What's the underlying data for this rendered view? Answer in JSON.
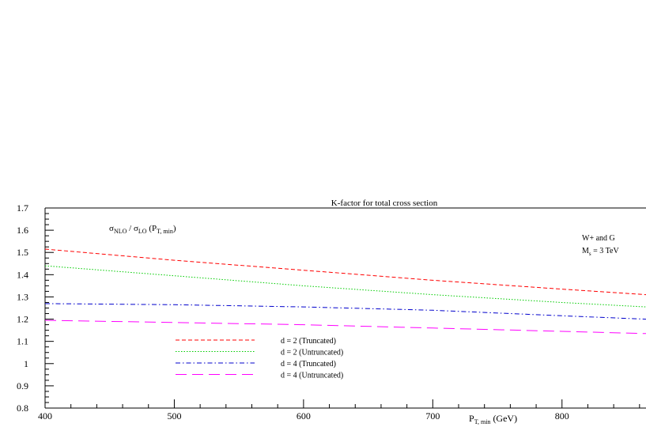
{
  "chart_data": {
    "type": "line",
    "title": "K-factor for total cross section",
    "ylabel_main": "σ",
    "ylabel_num_sub": "NLO",
    "ylabel_sep": " / σ",
    "ylabel_den_sub": "LO",
    "ylabel_arg_pre": " (P",
    "ylabel_arg_sub": "T, min",
    "ylabel_arg_post": ")",
    "xlabel_main": "P",
    "xlabel_sub": "T, min",
    "xlabel_unit": " (GeV)",
    "annotation_line1": "W+ and G",
    "annotation_line2_main": "M",
    "annotation_line2_sub": "s",
    "annotation_line2_post": " = 3 TeV",
    "xlim": [
      400,
      865
    ],
    "ylim": [
      0.8,
      1.7
    ],
    "x_ticks": [
      400,
      500,
      600,
      700,
      800
    ],
    "y_ticks": [
      0.8,
      0.9,
      1,
      1.1,
      1.2,
      1.3,
      1.4,
      1.5,
      1.6,
      1.7
    ],
    "y_tick_labels": [
      "0.8",
      "0.9",
      "1",
      "1.1",
      "1.2",
      "1.3",
      "1.4",
      "1.5",
      "1.6",
      "1.7"
    ],
    "x_tick_labels": [
      "400",
      "500",
      "600",
      "700",
      "800"
    ],
    "legend_position": "bottom-left",
    "grid": false,
    "series": [
      {
        "name": "d = 2 (Truncated)",
        "color": "#ff0000",
        "dash": "short-dash",
        "x": [
          400,
          500,
          600,
          700,
          800,
          865
        ],
        "y": [
          1.515,
          1.465,
          1.42,
          1.375,
          1.335,
          1.31
        ]
      },
      {
        "name": "d = 2 (Untruncated)",
        "color": "#00cc00",
        "dash": "dotted",
        "x": [
          400,
          500,
          600,
          700,
          800,
          865
        ],
        "y": [
          1.44,
          1.395,
          1.35,
          1.31,
          1.275,
          1.255
        ]
      },
      {
        "name": "d = 4 (Truncated)",
        "color": "#0000cc",
        "dash": "dash-dot",
        "x": [
          400,
          500,
          600,
          700,
          800,
          865
        ],
        "y": [
          1.27,
          1.265,
          1.255,
          1.24,
          1.215,
          1.2
        ]
      },
      {
        "name": "d = 4 (Untruncated)",
        "color": "#ff00ff",
        "dash": "long-dash",
        "x": [
          400,
          500,
          600,
          700,
          800,
          865
        ],
        "y": [
          1.195,
          1.185,
          1.175,
          1.16,
          1.145,
          1.135
        ]
      }
    ]
  }
}
